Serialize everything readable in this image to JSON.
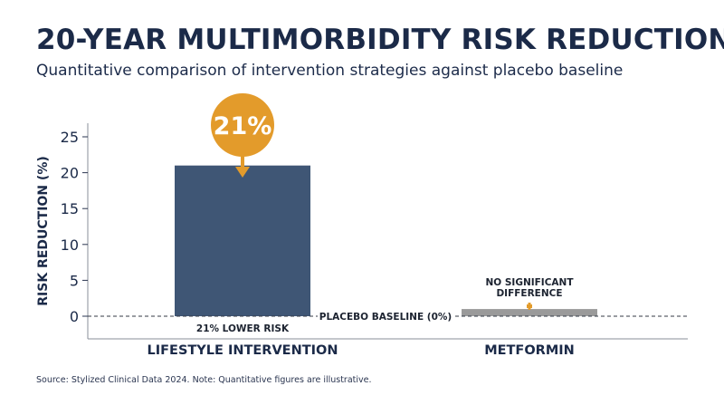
{
  "title": "20-YEAR MULTIMORBIDITY RISK REDUCTION",
  "subtitle": "Quantitative comparison of intervention strategies against placebo baseline",
  "source": "Source: Stylized Clinical Data 2024. Note: Quantitative figures are illustrative.",
  "colors": {
    "lifestyle_bar": "#3f5675",
    "metformin_bar": "#9a9a9a",
    "accent": "#e39b2b",
    "text": "#1b2a48"
  },
  "chart_data": {
    "type": "bar",
    "categories": [
      "LIFESTYLE INTERVENTION",
      "METFORMIN"
    ],
    "values": [
      21,
      1
    ],
    "ylabel": "RISK REDUCTION (%)",
    "xlabel": "",
    "ylim": [
      -3,
      27
    ],
    "yticks": [
      0,
      5,
      10,
      15,
      20,
      25
    ],
    "grid": false,
    "baseline": {
      "value": 0,
      "label": "PLACEBO BASELINE (0%)"
    },
    "bar_labels": [
      "21% LOWER RISK",
      ""
    ],
    "callouts": [
      {
        "category": "LIFESTYLE INTERVENTION",
        "text": "21%"
      },
      {
        "category": "METFORMIN",
        "text": "NO SIGNIFICANT\nDIFFERENCE"
      }
    ]
  }
}
